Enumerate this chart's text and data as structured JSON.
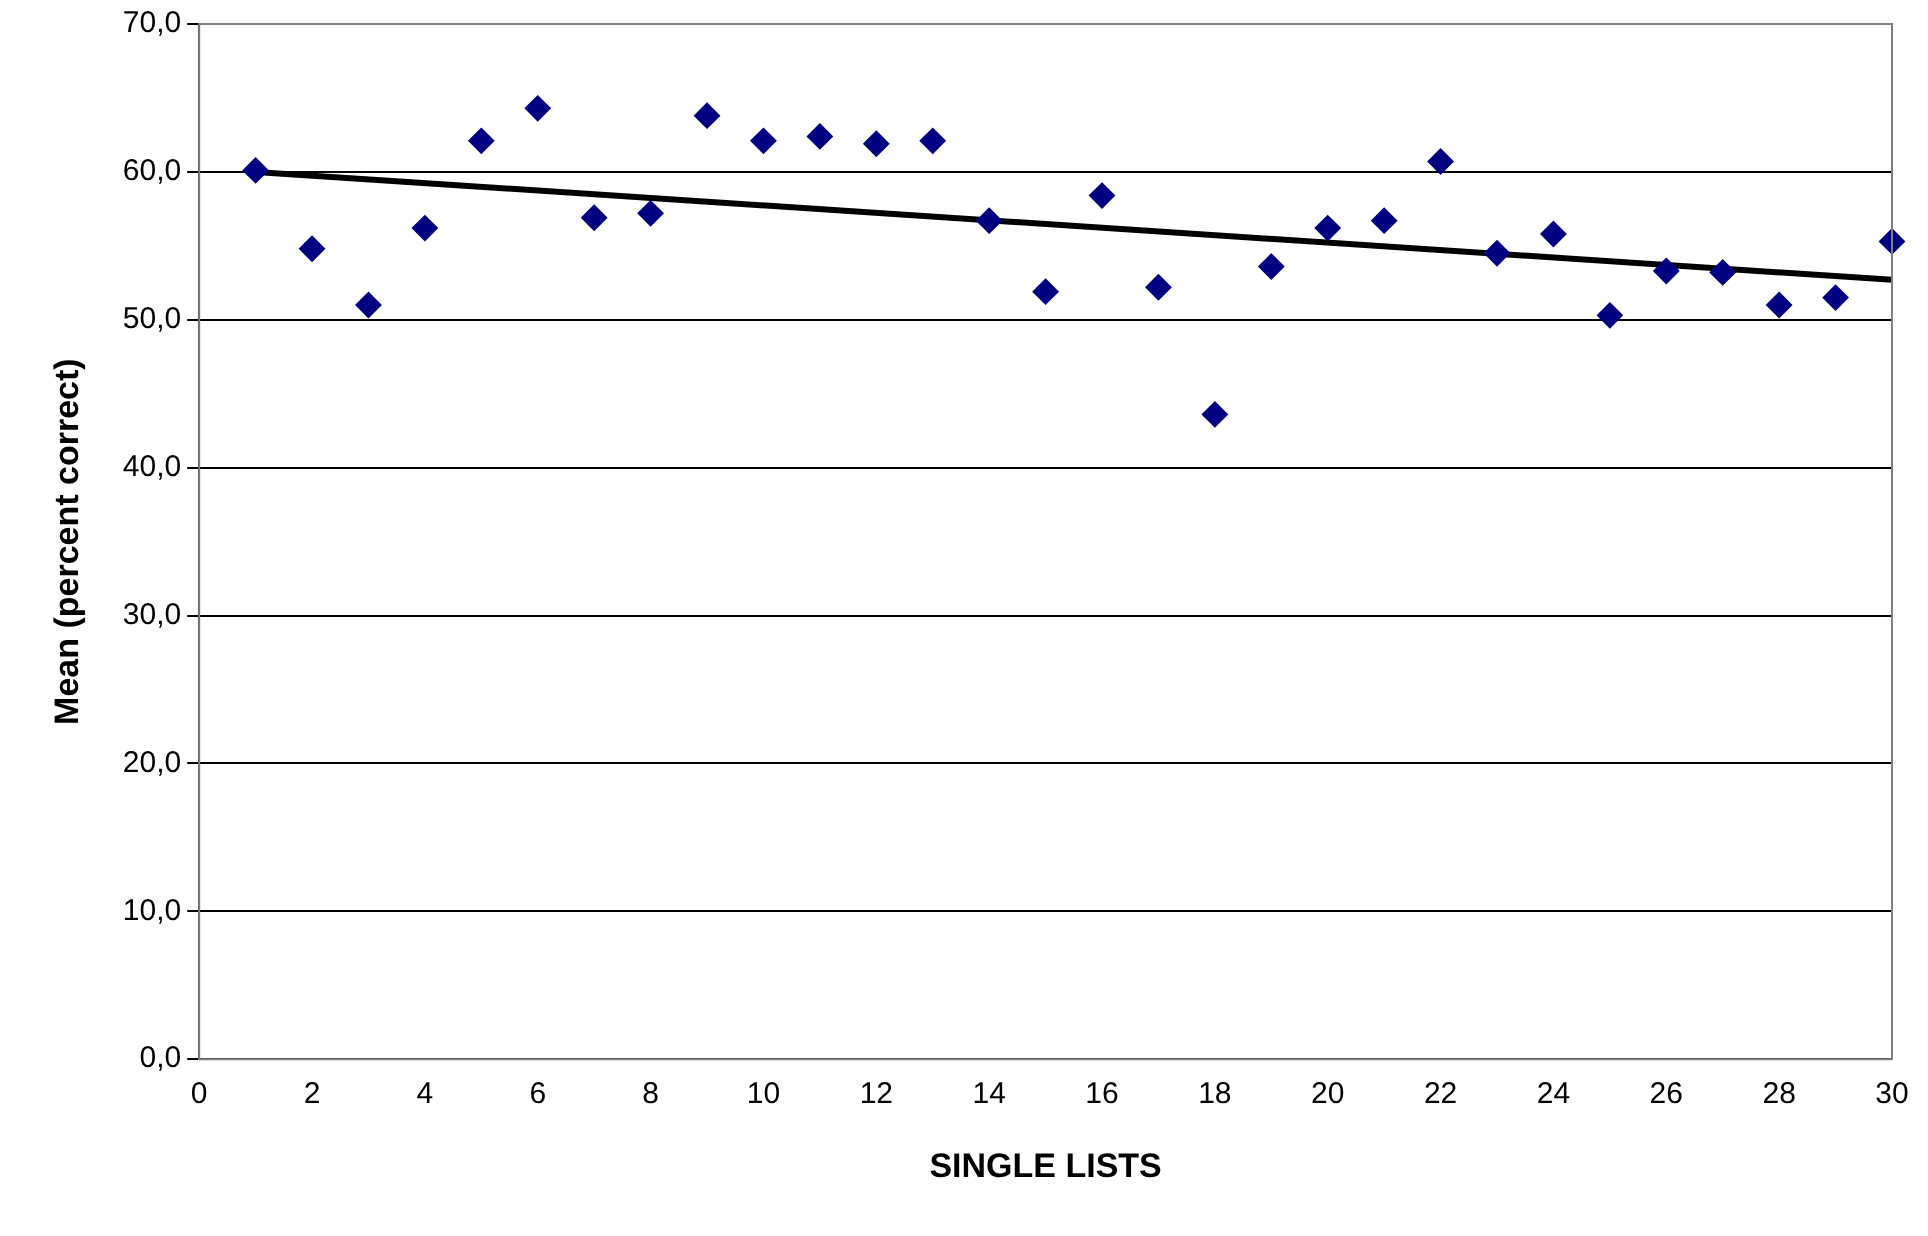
{
  "chart_data": {
    "type": "scatter",
    "xlabel": "SINGLE LISTS",
    "ylabel": "Mean (percent correct)",
    "xlim": [
      0,
      30
    ],
    "xticks": [
      0,
      2,
      4,
      6,
      8,
      10,
      12,
      14,
      16,
      18,
      20,
      22,
      24,
      26,
      28,
      30
    ],
    "ylim": [
      0,
      70
    ],
    "yticks": [
      {
        "value": 0,
        "label": "0,0"
      },
      {
        "value": 10,
        "label": "10,0"
      },
      {
        "value": 20,
        "label": "20,0"
      },
      {
        "value": 30,
        "label": "30,0"
      },
      {
        "value": 40,
        "label": "40,0"
      },
      {
        "value": 50,
        "label": "50,0"
      },
      {
        "value": 60,
        "label": "60,0"
      },
      {
        "value": 70,
        "label": "70,0"
      }
    ],
    "grid": "y",
    "legend": false,
    "series": [
      {
        "type": "scatter",
        "color": "#000080",
        "marker": "diamond",
        "x": [
          1,
          2,
          3,
          4,
          5,
          6,
          7,
          8,
          9,
          10,
          11,
          12,
          13,
          14,
          15,
          16,
          17,
          18,
          19,
          20,
          21,
          22,
          23,
          24,
          25,
          26,
          27,
          28,
          29,
          30
        ],
        "values": [
          60.1,
          54.8,
          51.0,
          56.2,
          62.1,
          64.3,
          56.9,
          57.2,
          63.8,
          62.1,
          62.4,
          61.9,
          62.1,
          56.7,
          51.9,
          58.4,
          52.2,
          43.6,
          53.6,
          56.2,
          56.7,
          60.7,
          54.5,
          55.8,
          50.3,
          53.3,
          53.2,
          51.0,
          51.5,
          55.3
        ]
      },
      {
        "type": "line",
        "color": "#000000",
        "marker": "none",
        "line_style": "solid",
        "x": [
          1,
          30
        ],
        "values": [
          60.0,
          52.7
        ]
      }
    ]
  }
}
